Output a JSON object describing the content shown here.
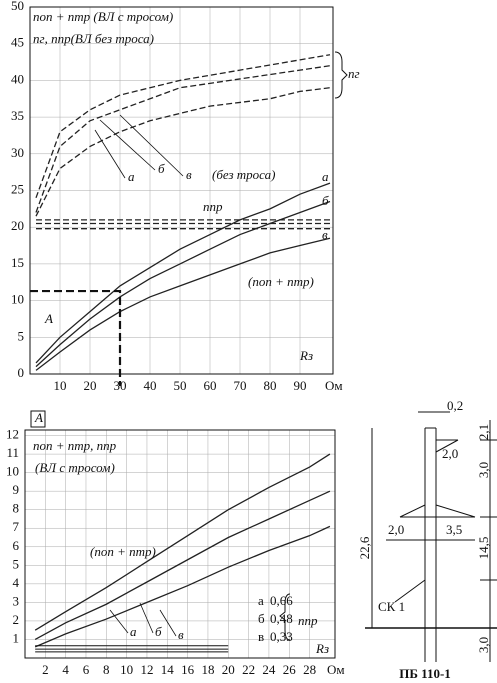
{
  "chart_data": [
    {
      "type": "line",
      "annotations": [
        "nоп + nтр (ВЛ с тросом)",
        "nг, nпр(ВЛ без троса)",
        "nг",
        "а",
        "б",
        "в",
        "(без троса)",
        "nпр",
        "а",
        "б",
        "в",
        "(nоп + nтр)",
        "A",
        "Rз"
      ],
      "x_unit": "Ом",
      "xlim": [
        0,
        101
      ],
      "xticks": [
        10,
        20,
        30,
        40,
        50,
        60,
        70,
        80,
        90
      ],
      "ylim": [
        0,
        50
      ],
      "yticks": [
        0,
        5,
        10,
        15,
        20,
        25,
        30,
        35,
        40,
        45,
        50
      ],
      "grid": true,
      "marker": {
        "x": 30,
        "y": 11.3
      },
      "series": [
        {
          "name": "а",
          "color": "#222",
          "dash": false,
          "x": [
            2,
            10,
            20,
            30,
            40,
            50,
            60,
            70,
            80,
            90,
            100
          ],
          "values": [
            1.5,
            5,
            8.5,
            12,
            14.5,
            17,
            19,
            21,
            22.5,
            24.5,
            26
          ]
        },
        {
          "name": "б",
          "color": "#222",
          "dash": false,
          "x": [
            2,
            10,
            20,
            30,
            40,
            50,
            60,
            70,
            80,
            90,
            100
          ],
          "values": [
            1,
            4,
            7.5,
            10.5,
            13,
            15,
            17,
            19,
            20.5,
            22,
            23.5
          ]
        },
        {
          "name": "в",
          "color": "#222",
          "dash": false,
          "x": [
            2,
            10,
            20,
            30,
            40,
            50,
            60,
            70,
            80,
            90,
            100
          ],
          "values": [
            0.5,
            3,
            6,
            8.5,
            10.5,
            12,
            13.5,
            15,
            16.5,
            17.5,
            18.5
          ]
        },
        {
          "name": "а",
          "color": "#222",
          "dash": true,
          "x": [
            2,
            10,
            20,
            30,
            40,
            50,
            60,
            70,
            80,
            90,
            100
          ],
          "values": [
            24,
            33,
            36,
            38,
            39,
            40,
            40.7,
            41.4,
            42.1,
            42.8,
            43.5
          ]
        },
        {
          "name": "б",
          "color": "#222",
          "dash": true,
          "x": [
            2,
            10,
            20,
            30,
            40,
            50,
            60,
            70,
            80,
            90,
            100
          ],
          "values": [
            22,
            31,
            34.5,
            36,
            37.5,
            39,
            39.6,
            40.2,
            40.8,
            41.4,
            42
          ]
        },
        {
          "name": "в",
          "color": "#222",
          "dash": true,
          "x": [
            2,
            10,
            20,
            30,
            40,
            50,
            60,
            70,
            80,
            90,
            100
          ],
          "values": [
            21.5,
            28,
            31,
            33,
            34.5,
            35.5,
            36.5,
            37,
            37.5,
            38.5,
            39
          ]
        },
        {
          "name": "а",
          "color": "#222",
          "dash": true,
          "x": [
            2,
            100
          ],
          "values": [
            21,
            21
          ]
        },
        {
          "name": "б",
          "color": "#222",
          "dash": true,
          "x": [
            2,
            100
          ],
          "values": [
            20.5,
            20.5
          ]
        },
        {
          "name": "в",
          "color": "#222",
          "dash": true,
          "x": [
            2,
            100
          ],
          "values": [
            19.8,
            19.8
          ]
        }
      ]
    },
    {
      "type": "line",
      "annotations": [
        "A",
        "nоп + nтр, nпр",
        "(ВЛ с тросом)",
        "(nоп + nтр)",
        "а",
        "б",
        "в",
        "nпр",
        "Rз"
      ],
      "x_unit": "Ом",
      "xlim": [
        0,
        30.5
      ],
      "xticks": [
        2,
        4,
        6,
        8,
        10,
        12,
        14,
        16,
        18,
        20,
        22,
        24,
        26,
        28
      ],
      "ylim": [
        0,
        12.3
      ],
      "yticks": [
        1,
        2,
        3,
        4,
        5,
        6,
        7,
        8,
        9,
        10,
        11,
        12
      ],
      "grid": true,
      "levels": [
        {
          "name": "а",
          "value": 0.66,
          "label": "0,66"
        },
        {
          "name": "б",
          "value": 0.48,
          "label": "0,48"
        },
        {
          "name": "в",
          "value": 0.33,
          "label": "0,33"
        }
      ],
      "level_x": [
        1,
        20
      ],
      "series": [
        {
          "name": "а",
          "color": "#222",
          "dash": false,
          "x": [
            1,
            4,
            8,
            12,
            16,
            20,
            24,
            28,
            30
          ],
          "values": [
            1.5,
            2.5,
            3.8,
            5.2,
            6.6,
            8,
            9.2,
            10.3,
            11
          ]
        },
        {
          "name": "б",
          "color": "#222",
          "dash": false,
          "x": [
            1,
            4,
            8,
            12,
            16,
            20,
            24,
            28,
            30
          ],
          "values": [
            1,
            1.9,
            2.9,
            4.1,
            5.3,
            6.5,
            7.5,
            8.5,
            9
          ]
        },
        {
          "name": "в",
          "color": "#222",
          "dash": false,
          "x": [
            1,
            4,
            8,
            12,
            16,
            20,
            24,
            28,
            30
          ],
          "values": [
            0.6,
            1.3,
            2.1,
            3,
            3.9,
            4.9,
            5.8,
            6.6,
            7.1
          ]
        }
      ]
    }
  ],
  "diagram": {
    "labels": [
      "0,2",
      "2,1",
      "2,0",
      "3,0",
      "2,0",
      "3,5",
      "22,6",
      "14,5",
      "СК 1",
      "3,0"
    ],
    "caption": "ПБ 110-1"
  }
}
